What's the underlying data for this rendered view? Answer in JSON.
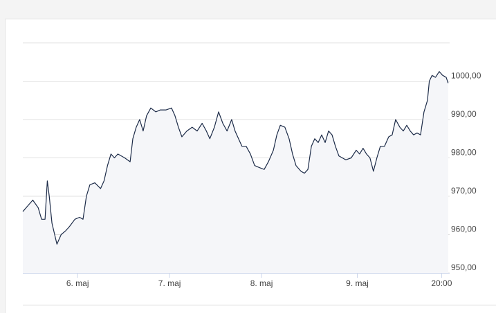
{
  "chart_data": {
    "type": "line",
    "x": [
      -14.3,
      -13.0,
      -11.7,
      -10.3,
      -9.4,
      -8.5,
      -7.9,
      -7.4,
      -6.7,
      -6.0,
      -5.4,
      -4.3,
      -3.1,
      -2.2,
      -0.7,
      0.5,
      1.4,
      2.3,
      3.2,
      4.5,
      6.0,
      6.9,
      7.8,
      8.7,
      9.6,
      10.5,
      12.3,
      13.7,
      14.4,
      15.3,
      16.2,
      17.1,
      18.0,
      19.1,
      20.4,
      21.6,
      23.1,
      24.5,
      25.4,
      26.3,
      27.2,
      28.5,
      29.9,
      31.2,
      32.5,
      33.6,
      34.5,
      35.7,
      36.8,
      37.9,
      39.0,
      40.2,
      41.1,
      42.0,
      42.9,
      44.0,
      45.1,
      46.2,
      47.4,
      48.7,
      49.8,
      51.1,
      52.0,
      52.9,
      54.1,
      55.2,
      56.1,
      57.0,
      58.3,
      59.2,
      60.1,
      61.0,
      61.9,
      62.8,
      63.7,
      64.6,
      65.5,
      66.4,
      67.3,
      68.2,
      69.1,
      70.0,
      71.4,
      72.7,
      73.6,
      74.5,
      75.4,
      76.3,
      77.2,
      78.1,
      79.0,
      80.1,
      81.2,
      82.1,
      83.0,
      84.1,
      85.0,
      85.9,
      86.8,
      87.7,
      88.6,
      89.5,
      90.4,
      91.3,
      91.8,
      92.5,
      93.4,
      94.4,
      95.3,
      96.2,
      96.7
    ],
    "values": [
      966,
      967.5,
      969,
      967,
      964,
      964,
      974,
      970,
      963,
      960,
      957.5,
      960,
      961,
      962,
      964,
      964.5,
      964,
      970,
      973,
      973.5,
      972,
      974,
      978,
      981,
      980,
      981,
      980,
      979,
      985,
      988,
      990,
      987,
      991,
      993,
      992,
      992.5,
      992.5,
      993,
      991,
      988,
      985.5,
      987,
      988,
      987,
      989,
      987,
      985,
      988,
      992,
      989,
      987,
      990,
      987,
      985,
      983,
      983,
      981,
      978,
      977.5,
      977,
      979,
      982,
      986,
      988.5,
      988,
      985,
      981,
      978,
      976.5,
      976,
      977,
      983,
      985,
      984,
      986,
      984,
      987,
      986,
      983,
      980.5,
      980,
      979.5,
      980,
      982,
      981,
      982.5,
      981,
      980,
      976.5,
      980,
      983,
      983,
      985.5,
      986,
      990,
      988,
      987,
      988.5,
      987,
      986,
      986.5,
      986,
      992,
      995,
      1000,
      1001.5,
      1001,
      1002.5,
      1001.5,
      1001,
      999.5
    ],
    "color": "#1c2b48",
    "xlim": [
      -14.3,
      97.1
    ],
    "xticks": [
      {
        "value": 0,
        "label": "6. maj"
      },
      {
        "value": 24,
        "label": "7. maj"
      },
      {
        "value": 48,
        "label": "8. maj"
      },
      {
        "value": 73,
        "label": "9. maj"
      },
      {
        "value": 95,
        "label": "20:00"
      }
    ],
    "ylim": [
      950,
      1010
    ],
    "yticks": [
      {
        "value": 950,
        "label": "950,00"
      },
      {
        "value": 960,
        "label": "960,00"
      },
      {
        "value": 970,
        "label": "970,00"
      },
      {
        "value": 980,
        "label": "980,00"
      },
      {
        "value": 990,
        "label": "990,00"
      },
      {
        "value": 1000,
        "label": "1000,00"
      }
    ],
    "grid": true
  }
}
